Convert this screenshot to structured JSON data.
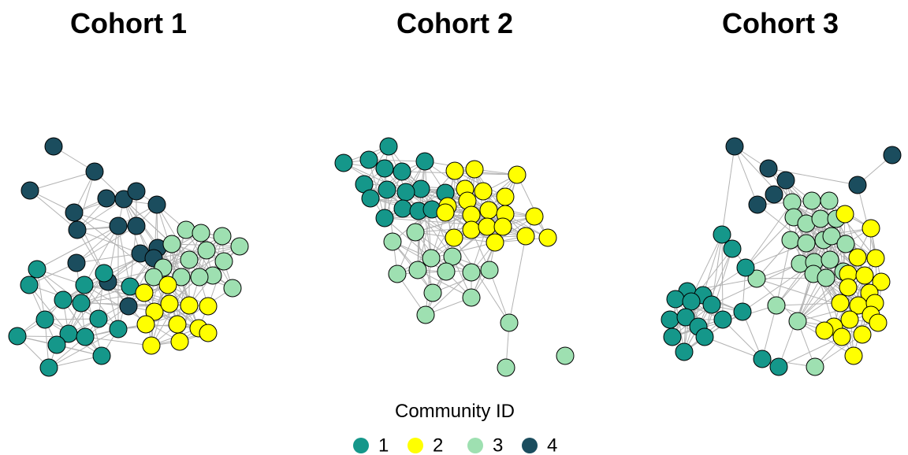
{
  "panels": [
    {
      "title": "Cohort 1"
    },
    {
      "title": "Cohort 2"
    },
    {
      "title": "Cohort 3"
    }
  ],
  "legend": {
    "title": "Community ID",
    "entries": [
      {
        "label": "1",
        "color": "#15978a"
      },
      {
        "label": "2",
        "color": "#ffff00"
      },
      {
        "label": "3",
        "color": "#9ee0b1"
      },
      {
        "label": "4",
        "color": "#1b4d5e"
      }
    ]
  }
}
